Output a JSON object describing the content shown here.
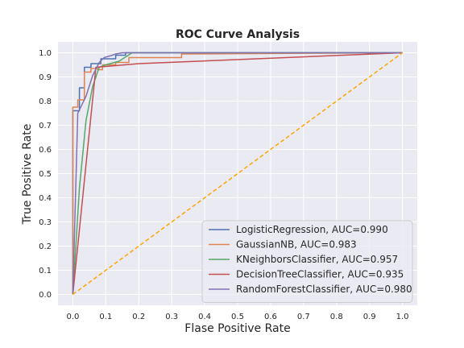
{
  "chart_data": {
    "type": "line",
    "title": "ROC Curve Analysis",
    "xlabel": "Flase Positive Rate",
    "ylabel": "True Positive Rate",
    "xlim": [
      -0.045,
      1.045
    ],
    "ylim": [
      -0.045,
      1.045
    ],
    "xticks": [
      0.0,
      0.1,
      0.2,
      0.3,
      0.4,
      0.5,
      0.6,
      0.7,
      0.8,
      0.9,
      1.0
    ],
    "yticks": [
      0.0,
      0.1,
      0.2,
      0.3,
      0.4,
      0.5,
      0.6,
      0.7,
      0.8,
      0.9,
      1.0
    ],
    "xtick_labels": [
      "0.0",
      "0.1",
      "0.2",
      "0.3",
      "0.4",
      "0.5",
      "0.6",
      "0.7",
      "0.8",
      "0.9",
      "1.0"
    ],
    "ytick_labels": [
      "0.0",
      "0.1",
      "0.2",
      "0.3",
      "0.4",
      "0.5",
      "0.6",
      "0.7",
      "0.8",
      "0.9",
      "1.0"
    ],
    "grid": true,
    "background": "#EAEAF2",
    "legend_position": "lower-right",
    "series": [
      {
        "name": "LogisticRegression, AUC=0.990",
        "color": "#4C72B0",
        "x": [
          0,
          0,
          0.02,
          0.02,
          0.035,
          0.035,
          0.055,
          0.055,
          0.085,
          0.085,
          0.13,
          0.13,
          0.16,
          0.16,
          1.0
        ],
        "y": [
          0,
          0.76,
          0.76,
          0.855,
          0.855,
          0.94,
          0.94,
          0.955,
          0.955,
          0.975,
          0.975,
          0.99,
          0.99,
          1.0,
          1.0
        ]
      },
      {
        "name": "GaussianNB, AUC=0.983",
        "color": "#DD8452",
        "x": [
          0,
          0,
          0.015,
          0.015,
          0.035,
          0.035,
          0.055,
          0.055,
          0.075,
          0.075,
          0.09,
          0.09,
          0.13,
          0.13,
          0.17,
          0.17,
          0.33,
          0.33,
          1.0
        ],
        "y": [
          0,
          0.775,
          0.775,
          0.805,
          0.805,
          0.92,
          0.92,
          0.935,
          0.935,
          0.93,
          0.93,
          0.95,
          0.95,
          0.96,
          0.96,
          0.98,
          0.98,
          0.995,
          1.0
        ]
      },
      {
        "name": "KNeighborsClassifier, AUC=0.957",
        "color": "#55A868",
        "x": [
          0,
          0.02,
          0.04,
          0.06,
          0.08,
          0.1,
          0.14,
          0.18,
          1.0
        ],
        "y": [
          0,
          0.44,
          0.72,
          0.86,
          0.94,
          0.95,
          0.965,
          1.0,
          1.0
        ]
      },
      {
        "name": "DecisionTreeClassifier, AUC=0.935",
        "color": "#C44E52",
        "x": [
          0,
          0.07,
          0.2,
          1.0
        ],
        "y": [
          0,
          0.94,
          0.955,
          1.0
        ]
      },
      {
        "name": "RandomForestClassifier, AUC=0.980",
        "color": "#8172B3",
        "x": [
          0,
          0.015,
          0.04,
          0.06,
          0.08,
          0.095,
          0.12,
          0.13,
          0.15,
          1.0
        ],
        "y": [
          0,
          0.75,
          0.82,
          0.905,
          0.96,
          0.98,
          0.99,
          0.995,
          1.0,
          1.0
        ]
      },
      {
        "name": "",
        "color": "#FFA500",
        "dashed": true,
        "x": [
          0,
          1.0
        ],
        "y": [
          0,
          1.0
        ]
      }
    ]
  }
}
